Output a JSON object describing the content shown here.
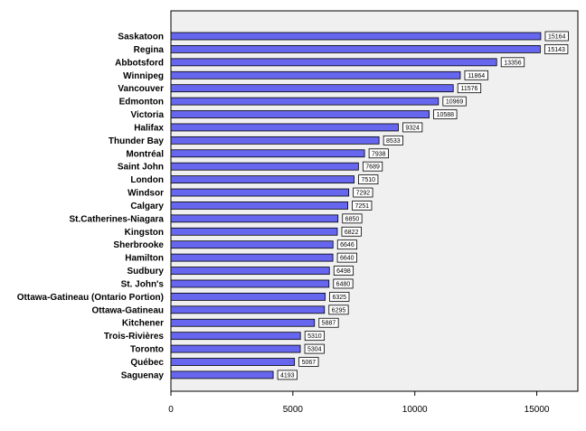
{
  "chart_data": {
    "type": "bar",
    "orientation": "horizontal",
    "categories": [
      "Saskatoon",
      "Regina",
      "Abbotsford",
      "Winnipeg",
      "Vancouver",
      "Edmonton",
      "Victoria",
      "Halifax",
      "Thunder Bay",
      "Montréal",
      "Saint John",
      "London",
      "Windsor",
      "Calgary",
      "St.Catherines-Niagara",
      "Kingston",
      "Sherbrooke",
      "Hamilton",
      "Sudbury",
      "St. John's",
      "Ottawa-Gatineau (Ontario Portion)",
      "Ottawa-Gatineau",
      "Kitchener",
      "Trois-Rivières",
      "Toronto",
      "Québec",
      "Saguenay"
    ],
    "values": [
      15164,
      15143,
      13356,
      11864,
      11576,
      10969,
      10588,
      9324,
      8533,
      7938,
      7689,
      7510,
      7292,
      7251,
      6850,
      6822,
      6646,
      6640,
      6498,
      6480,
      6325,
      6295,
      5887,
      5310,
      5304,
      5067,
      4193
    ],
    "xlim": [
      0,
      16500
    ],
    "xticks": [
      0,
      5000,
      10000,
      15000
    ],
    "title": "",
    "xlabel": "",
    "ylabel": "",
    "grid": false,
    "bar_color": "#6666ee",
    "plot_background": "#f0f0f0"
  }
}
